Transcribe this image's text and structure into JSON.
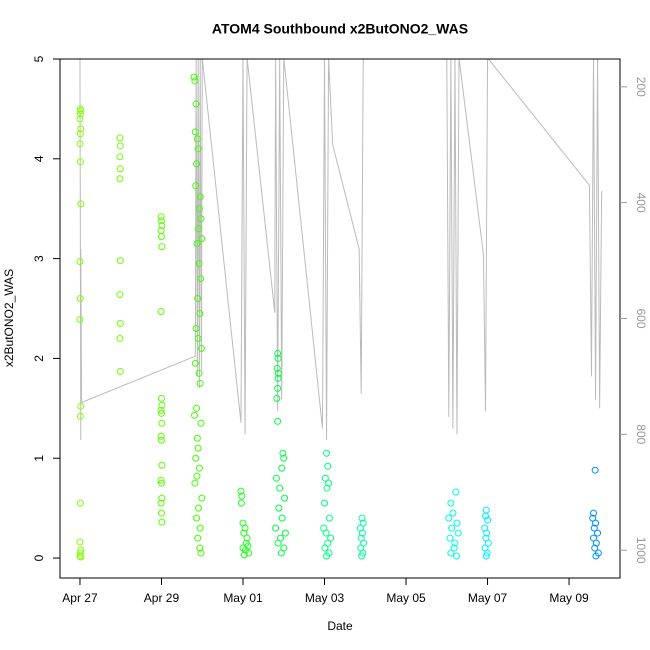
{
  "chart_data": {
    "type": "scatter",
    "title": "ATOM4 Southbound x2ButONO2_WAS",
    "x_label": "Date",
    "y_label": "x2ButONO2_WAS",
    "xlim": [
      -0.49,
      13.25
    ],
    "ylim": [
      -0.2,
      5
    ],
    "y2lim": [
      1048,
      152
    ],
    "xticks": [
      {
        "value": 0,
        "label": "Apr 27"
      },
      {
        "value": 2,
        "label": "Apr 29"
      },
      {
        "value": 4,
        "label": "May 01"
      },
      {
        "value": 6,
        "label": "May 03"
      },
      {
        "value": 8,
        "label": "May 05"
      },
      {
        "value": 10,
        "label": "May 07"
      },
      {
        "value": 12,
        "label": "May 09"
      }
    ],
    "yticks": [
      0,
      1,
      2,
      3,
      4,
      5
    ],
    "y2ticks": [
      200,
      400,
      600,
      800,
      1000
    ],
    "y2_color": "#999999",
    "series": [
      {
        "color": "#80ff00",
        "x": [
          0.01,
          0.02,
          0.01,
          0.0,
          0.02,
          0.01,
          0.0,
          0.01,
          0.02,
          0.0,
          0.01,
          0.0,
          0.02,
          0.01,
          0.01,
          0.0,
          0.02,
          0.01,
          0.0,
          0.02
        ],
        "values": [
          4.5,
          4.48,
          4.45,
          4.4,
          4.3,
          4.25,
          4.15,
          3.97,
          3.55,
          2.97,
          2.6,
          2.39,
          1.52,
          1.42,
          0.55,
          0.16,
          0.08,
          0.05,
          0.02,
          0.01
        ]
      },
      {
        "color": "#70ff00",
        "x": [
          0.98,
          0.99,
          0.98,
          0.99,
          0.98,
          0.99,
          0.98,
          0.99,
          0.98,
          0.99
        ],
        "values": [
          4.21,
          4.13,
          4.02,
          3.9,
          3.8,
          2.98,
          2.64,
          2.35,
          2.2,
          1.87
        ]
      },
      {
        "color": "#5aff00",
        "x": [
          1.99,
          2.0,
          2.01,
          1.99,
          2.0,
          2.01,
          1.99,
          2.0,
          2.01,
          1.99,
          2.0,
          2.01,
          1.99,
          2.0,
          2.01,
          1.99,
          2.0,
          2.01,
          1.99,
          2.0,
          2.01
        ],
        "values": [
          3.42,
          3.38,
          3.33,
          3.28,
          3.22,
          3.12,
          2.47,
          1.6,
          1.53,
          1.48,
          1.45,
          1.35,
          1.22,
          1.18,
          0.93,
          0.78,
          0.75,
          0.6,
          0.55,
          0.45,
          0.36
        ]
      },
      {
        "color": "#40ff00",
        "x": [
          2.8,
          2.82,
          2.85,
          2.83,
          2.88,
          2.9,
          2.86,
          2.84,
          2.95,
          2.93,
          2.97,
          2.91,
          2.99,
          2.87,
          2.92,
          2.96,
          2.89,
          2.94,
          2.85,
          2.9,
          2.98,
          2.83,
          2.92,
          2.95,
          2.86,
          2.81,
          2.97,
          2.88,
          2.9,
          2.84,
          2.93,
          2.87,
          2.82,
          2.99,
          2.91,
          2.86,
          2.95,
          2.89,
          2.94,
          2.97
        ],
        "values": [
          4.82,
          4.78,
          4.55,
          4.27,
          4.2,
          4.1,
          3.95,
          3.73,
          3.62,
          3.5,
          3.4,
          3.3,
          3.2,
          3.15,
          2.95,
          2.8,
          2.6,
          2.45,
          2.3,
          2.2,
          2.1,
          1.95,
          1.85,
          1.75,
          1.5,
          1.43,
          1.35,
          1.2,
          1.1,
          1.0,
          0.9,
          0.82,
          0.75,
          0.6,
          0.5,
          0.4,
          0.3,
          0.2,
          0.1,
          0.05
        ]
      },
      {
        "color": "#20ff20",
        "x": [
          3.95,
          3.97,
          3.96,
          4.0,
          4.05,
          4.02,
          4.1,
          4.08,
          4.12,
          4.0,
          4.06,
          4.14,
          4.03
        ],
        "values": [
          0.67,
          0.62,
          0.55,
          0.35,
          0.3,
          0.25,
          0.2,
          0.15,
          0.12,
          0.1,
          0.08,
          0.05,
          0.03
        ]
      },
      {
        "color": "#00ff40",
        "x": [
          4.85,
          4.86,
          4.84,
          4.87,
          4.86,
          4.85,
          4.83,
          4.85,
          4.98,
          5.0,
          4.95,
          4.82,
          4.9,
          5.02,
          4.88,
          4.96,
          4.8,
          5.04,
          4.92,
          4.86,
          5.0,
          4.94
        ],
        "values": [
          2.05,
          2.0,
          1.9,
          1.85,
          1.8,
          1.7,
          1.6,
          1.37,
          1.05,
          1.0,
          0.9,
          0.8,
          0.7,
          0.6,
          0.5,
          0.4,
          0.3,
          0.25,
          0.2,
          0.15,
          0.1,
          0.05
        ]
      },
      {
        "color": "#00ff80",
        "x": [
          6.05,
          6.08,
          6.02,
          6.1,
          6.06,
          6.0,
          6.12,
          5.98,
          6.04,
          6.15,
          6.08,
          6.01,
          6.11,
          6.05
        ],
        "values": [
          1.05,
          0.92,
          0.8,
          0.75,
          0.7,
          0.55,
          0.4,
          0.3,
          0.25,
          0.2,
          0.15,
          0.1,
          0.05,
          0.02
        ]
      },
      {
        "color": "#00ffa0",
        "x": [
          6.92,
          6.95,
          6.88,
          6.93,
          6.9,
          6.96,
          6.89,
          6.94,
          6.91
        ],
        "values": [
          0.4,
          0.35,
          0.3,
          0.25,
          0.2,
          0.15,
          0.1,
          0.05,
          0.02
        ]
      },
      {
        "color": "#00ffe0",
        "x": [
          9.22,
          9.1,
          9.15,
          9.05,
          9.25,
          9.12,
          9.28,
          9.08,
          9.2,
          9.18,
          9.1,
          9.24
        ],
        "values": [
          0.66,
          0.55,
          0.45,
          0.4,
          0.35,
          0.3,
          0.25,
          0.2,
          0.15,
          0.1,
          0.05,
          0.02
        ]
      },
      {
        "color": "#00f0ff",
        "x": [
          9.97,
          9.95,
          10.0,
          9.93,
          9.98,
          9.96,
          10.02,
          9.94,
          9.99,
          9.97
        ],
        "values": [
          0.48,
          0.42,
          0.38,
          0.3,
          0.25,
          0.2,
          0.15,
          0.1,
          0.05,
          0.02
        ]
      },
      {
        "color": "#0090ff",
        "x": [
          12.64,
          12.6,
          12.58,
          12.65,
          12.62,
          12.7,
          12.6,
          12.67,
          12.63,
          12.72,
          12.66
        ],
        "values": [
          0.88,
          0.45,
          0.4,
          0.35,
          0.3,
          0.25,
          0.2,
          0.15,
          0.1,
          0.05,
          0.02
        ]
      },
      {
        "type": "line",
        "axis": "y2",
        "color": "#bbbbbb",
        "x": [
          0.0,
          0.02,
          0.02,
          0.04,
          2.83,
          2.85,
          2.88,
          2.9,
          2.93,
          2.95,
          2.98,
          3.0,
          3.95,
          4.0,
          4.05,
          4.1,
          4.78,
          4.8,
          4.85,
          4.9,
          4.95,
          5.0,
          5.95,
          6.0,
          6.05,
          6.1,
          6.2,
          6.85,
          6.9,
          6.95,
          9.0,
          9.05,
          9.1,
          9.15,
          9.2,
          9.25,
          9.3,
          9.9,
          9.95,
          10.0,
          12.5,
          12.55,
          12.6,
          12.65,
          12.7,
          12.75,
          12.8
        ],
        "values": [
          150,
          810,
          480,
          745,
          665,
          150,
          700,
          150,
          720,
          150,
          690,
          150,
          780,
          150,
          800,
          150,
          590,
          150,
          760,
          150,
          740,
          150,
          790,
          150,
          810,
          150,
          300,
          480,
          730,
          150,
          150,
          770,
          150,
          790,
          150,
          800,
          150,
          490,
          760,
          150,
          370,
          700,
          150,
          740,
          150,
          755,
          380
        ]
      }
    ]
  }
}
